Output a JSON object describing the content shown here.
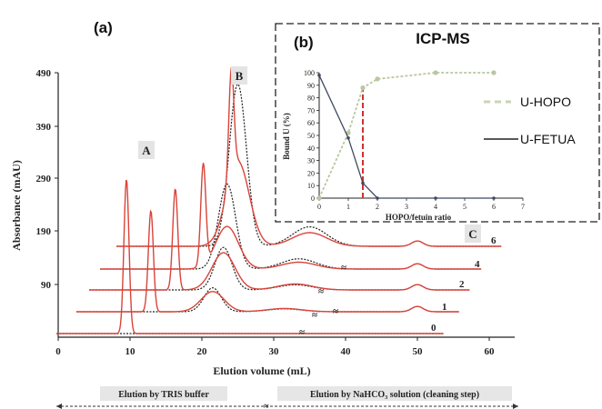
{
  "main": {
    "panel_label": "(a)",
    "ylabel": "Absorbance (mAU)",
    "xlabel": "Elution volume (mL)",
    "y_ticks": [
      "490",
      "390",
      "290",
      "190",
      "90"
    ],
    "x_ticks": [
      "0",
      "10",
      "20",
      "30",
      "40",
      "50",
      "60"
    ],
    "peak_labels": [
      "A",
      "B",
      "C"
    ],
    "trace_labels": [
      "6",
      "4",
      "2",
      "1",
      "0"
    ],
    "elution_tris": "Elution by TRIS buffer",
    "elution_nahco3": "Elution by NaHCO₃ solution (cleaning step)",
    "colors": {
      "red": "#d9443a",
      "black": "#222222",
      "inset_green": "#b8c7a0",
      "inset_dark": "#3f4a60",
      "inset_marker": "#d32f2f"
    }
  },
  "inset": {
    "panel_label": "(b)",
    "title": "ICP-MS",
    "ylabel": "Bound U (%)",
    "xlabel": "HOPO/fetuin ratio",
    "y_ticks": [
      "0",
      "10",
      "20",
      "30",
      "40",
      "50",
      "60",
      "70",
      "80",
      "90",
      "100"
    ],
    "x_ticks": [
      "0",
      "1",
      "2",
      "3",
      "4",
      "5",
      "6",
      "7"
    ]
  },
  "legend": {
    "hopo": "U-HOPO",
    "fetua": "U-FETUA"
  },
  "chart_data": [
    {
      "type": "line",
      "title": "",
      "xlabel": "Elution volume (mL)",
      "ylabel": "Absorbance (mAU)",
      "xlim": [
        0,
        62
      ],
      "ylim": [
        0,
        490
      ],
      "grid": false,
      "series": [
        {
          "name": "0",
          "peak_A": {
            "x": 9.5,
            "height": 290
          }
        },
        {
          "name": "1",
          "peak_A": {
            "x": 11.0,
            "height": 190
          },
          "peak_B_red": {
            "x": 21.5,
            "height": 38
          },
          "peak_B_black": {
            "x": 21.5,
            "height": 45
          }
        },
        {
          "name": "2",
          "peak_A": {
            "x": 12.5,
            "height": 190
          },
          "peak_B_red": {
            "x": 23.0,
            "height": 70
          },
          "peak_B_black": {
            "x": 23.0,
            "height": 80
          }
        },
        {
          "name": "4",
          "peak_A": {
            "x": 14.5,
            "height": 190
          },
          "peak_B_red": {
            "x": 23.5,
            "height": 80
          },
          "peak_B_black": {
            "x": 23.5,
            "height": 160
          }
        },
        {
          "name": "6",
          "peak_A": {
            "x": 16.5,
            "height": 200
          },
          "peak_B_red": {
            "x": 25.0,
            "height": 160
          },
          "peak_B_black": {
            "x": 25.0,
            "height": 305
          }
        }
      ]
    },
    {
      "type": "line",
      "title": "ICP-MS",
      "xlabel": "HOPO/fetuin ratio",
      "ylabel": "Bound U (%)",
      "xlim": [
        0,
        7
      ],
      "ylim": [
        0,
        100
      ],
      "grid": false,
      "marker_x": 1.5,
      "series": [
        {
          "name": "U-HOPO",
          "x": [
            0,
            1,
            1.5,
            2,
            4,
            6
          ],
          "y": [
            0,
            52,
            88,
            95,
            100,
            100
          ]
        },
        {
          "name": "U-FETUA",
          "x": [
            0,
            1,
            1.5,
            2,
            4,
            6
          ],
          "y": [
            98,
            48,
            12,
            0,
            0,
            0
          ]
        }
      ]
    }
  ]
}
